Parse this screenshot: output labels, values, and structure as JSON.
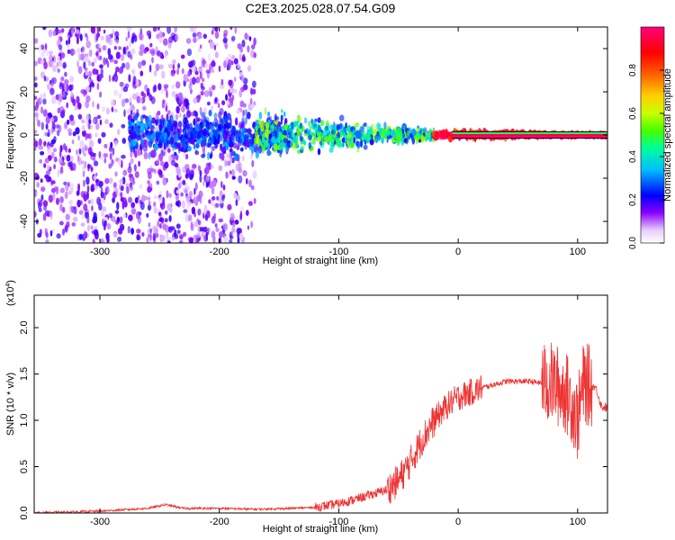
{
  "figure_title": "C2E3.2025.028.07.54.G09",
  "chart_data": [
    {
      "type": "heatmap",
      "title": "C2E3.2025.028.07.54.G09",
      "xlabel": "Height of straight line (km)",
      "ylabel": "Frequency (Hz)",
      "xlim": [
        -355,
        125
      ],
      "ylim": [
        -50,
        50
      ],
      "x_ticks": [
        -300,
        -200,
        -100,
        0,
        100
      ],
      "y_ticks": [
        -40,
        -20,
        0,
        20,
        40
      ],
      "colorbar": {
        "label": "Normalized spectral amplitude",
        "range": [
          0.0,
          1.0
        ],
        "ticks": [
          0.0,
          0.2,
          0.4,
          0.6,
          0.8
        ],
        "colors": [
          "#ffffff",
          "#8a00ff",
          "#0000ff",
          "#00bfff",
          "#00ff7f",
          "#c8ff00",
          "#ffd000",
          "#ff6000",
          "#ff0000",
          "#ff007f"
        ]
      },
      "description_bands": [
        {
          "x_range": [
            -355,
            -170
          ],
          "freq_spread": [
            -50,
            50
          ],
          "amplitude": [
            0.05,
            0.2
          ]
        },
        {
          "x_range": [
            -275,
            -140
          ],
          "freq_spread": [
            -12,
            12
          ],
          "amplitude": [
            0.15,
            0.35
          ]
        },
        {
          "x_range": [
            -170,
            -20
          ],
          "freq_spread": [
            -10,
            10
          ],
          "amplitude": [
            0.2,
            0.6
          ]
        },
        {
          "x_range": [
            -20,
            125
          ],
          "freq_spread": [
            -2,
            2
          ],
          "amplitude": [
            0.8,
            1.0
          ]
        }
      ],
      "carrier_line_hz": 0,
      "grid": false
    },
    {
      "type": "line",
      "xlabel": "Height of straight line (km)",
      "ylabel": "SNR (10 * v/v)",
      "y_multiplier_label": "(x10",
      "y_multiplier_exp": "4",
      "xlim": [
        -355,
        125
      ],
      "ylim": [
        0.0,
        2.35
      ],
      "x_ticks": [
        -300,
        -200,
        -100,
        0,
        100
      ],
      "y_ticks": [
        0.0,
        0.5,
        1.0,
        1.5,
        2.0
      ],
      "series_color": "#ee3333",
      "series": [
        {
          "name": "",
          "x": [
            -355,
            -300,
            -260,
            -245,
            -230,
            -200,
            -170,
            -140,
            -120,
            -100,
            -80,
            -60,
            -50,
            -40,
            -30,
            -20,
            -10,
            0,
            20,
            40,
            60,
            70,
            80,
            90,
            95,
            100,
            105,
            110,
            115,
            120,
            125
          ],
          "y": [
            0.0,
            0.02,
            0.05,
            0.09,
            0.05,
            0.05,
            0.04,
            0.05,
            0.06,
            0.1,
            0.17,
            0.25,
            0.35,
            0.55,
            0.8,
            1.0,
            1.15,
            1.25,
            1.35,
            1.42,
            1.42,
            1.4,
            1.4,
            1.3,
            1.2,
            1.0,
            1.4,
            1.37,
            1.36,
            1.15,
            1.13
          ]
        }
      ],
      "grid": false
    }
  ]
}
